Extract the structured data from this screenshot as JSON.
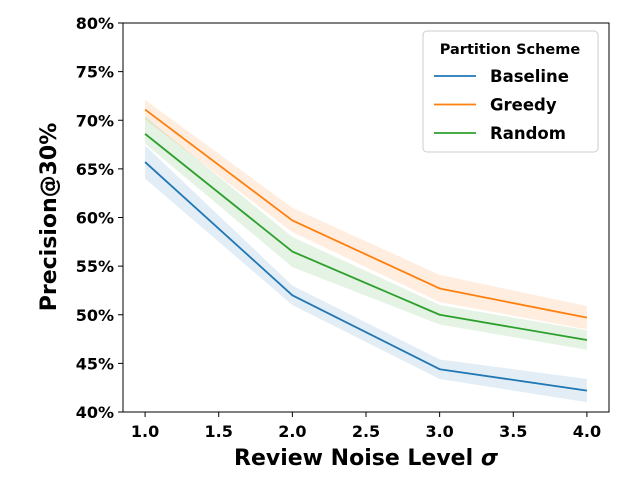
{
  "chart_data": {
    "type": "line",
    "title": "",
    "xlabel": "Review Noise Level",
    "xlabel_symbol": "σ",
    "ylabel": "Precision@30%",
    "x": [
      1.0,
      2.0,
      3.0,
      4.0
    ],
    "xlim": [
      0.85,
      4.15
    ],
    "ylim": [
      40,
      80
    ],
    "xticks": [
      1.0,
      1.5,
      2.0,
      2.5,
      3.0,
      3.5,
      4.0
    ],
    "xtick_labels": [
      "1.0",
      "1.5",
      "2.0",
      "2.5",
      "3.0",
      "3.5",
      "4.0"
    ],
    "yticks": [
      40,
      45,
      50,
      55,
      60,
      65,
      70,
      75,
      80
    ],
    "ytick_labels": [
      "40%",
      "45%",
      "50%",
      "55%",
      "60%",
      "65%",
      "70%",
      "75%",
      "80%"
    ],
    "grid": false,
    "legend": {
      "title": "Partition Scheme",
      "location": "top-right"
    },
    "series": [
      {
        "name": "Baseline",
        "color": "#1f77b4",
        "values": [
          65.7,
          52.0,
          44.4,
          42.2
        ],
        "lower": [
          64.0,
          51.0,
          43.4,
          41.0
        ],
        "upper": [
          67.4,
          53.0,
          45.4,
          43.4
        ]
      },
      {
        "name": "Greedy",
        "color": "#ff7f0e",
        "values": [
          71.1,
          59.7,
          52.7,
          49.7
        ],
        "lower": [
          70.1,
          58.5,
          51.3,
          48.5
        ],
        "upper": [
          72.1,
          61.0,
          54.1,
          50.9
        ]
      },
      {
        "name": "Random",
        "color": "#2ca02c",
        "values": [
          68.6,
          56.5,
          50.0,
          47.4
        ],
        "lower": [
          67.6,
          54.9,
          49.0,
          46.4
        ],
        "upper": [
          70.4,
          58.0,
          51.0,
          48.4
        ]
      }
    ]
  }
}
